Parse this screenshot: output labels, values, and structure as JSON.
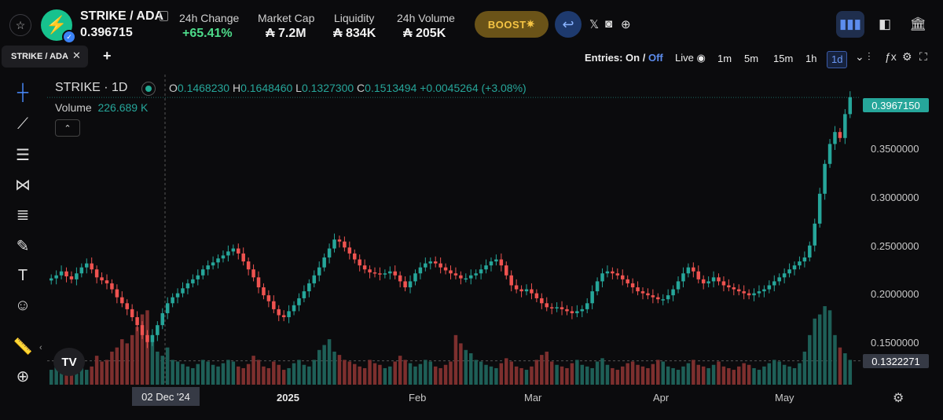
{
  "header": {
    "pair": "STRIKE / ADA",
    "price": "0.396715",
    "stats": [
      {
        "label": "24h Change",
        "value": "+65.41%"
      },
      {
        "label": "Market Cap",
        "value": "₳ 7.2M"
      },
      {
        "label": "Liquidity",
        "value": "₳ 834K"
      },
      {
        "label": "24h Volume",
        "value": "₳ 205K"
      }
    ],
    "boost_label": "BOOST",
    "colors": {
      "up": "#4ddb8a",
      "boost_bg": "#6a5318",
      "accent": "#5d8dee"
    }
  },
  "tabs": {
    "active": "STRIKE / ADA"
  },
  "toolbar": {
    "entries_label": "Entries:",
    "entries_on": "On",
    "entries_sep": "/",
    "entries_off": "Off",
    "live_label": "Live",
    "timeframes": [
      "1m",
      "5m",
      "15m",
      "1h",
      "1d"
    ],
    "active_timeframe": "1d"
  },
  "chart": {
    "title": "STRIKE · 1D",
    "ohlc": {
      "o": "0.1468230",
      "h": "0.1648460",
      "l": "0.1327300",
      "c": "0.1513494",
      "chg": "+0.0045264 (+3.08%)"
    },
    "volume_label": "Volume",
    "volume_value": "226.689 K",
    "current_price_tag": "0.3967150",
    "crosshair_price_tag": "0.1322271",
    "crosshair_date": "02 Dec '24",
    "y_ticks": [
      "0.3500000",
      "0.3000000",
      "0.2500000",
      "0.2000000",
      "0.1500000"
    ],
    "x_ticks": [
      "2025",
      "Feb",
      "Mar",
      "Apr",
      "May"
    ]
  },
  "chart_data": {
    "type": "candlestick",
    "title": "STRIKE · 1D",
    "ylim": [
      0.13,
      0.4
    ],
    "y_ticks": [
      0.15,
      0.2,
      0.25,
      0.3,
      0.35
    ],
    "x_ticks": [
      "2025",
      "Feb",
      "Mar",
      "Apr",
      "May"
    ],
    "close_series": [
      0.215,
      0.218,
      0.222,
      0.217,
      0.214,
      0.22,
      0.226,
      0.23,
      0.224,
      0.216,
      0.213,
      0.21,
      0.204,
      0.196,
      0.19,
      0.184,
      0.176,
      0.168,
      0.158,
      0.151,
      0.158,
      0.168,
      0.18,
      0.19,
      0.196,
      0.2,
      0.205,
      0.21,
      0.214,
      0.218,
      0.224,
      0.228,
      0.231,
      0.235,
      0.238,
      0.242,
      0.245,
      0.24,
      0.232,
      0.224,
      0.216,
      0.206,
      0.198,
      0.192,
      0.184,
      0.178,
      0.176,
      0.182,
      0.188,
      0.195,
      0.202,
      0.21,
      0.218,
      0.226,
      0.236,
      0.245,
      0.254,
      0.252,
      0.246,
      0.24,
      0.234,
      0.228,
      0.224,
      0.221,
      0.22,
      0.219,
      0.22,
      0.222,
      0.218,
      0.212,
      0.206,
      0.212,
      0.22,
      0.226,
      0.23,
      0.232,
      0.23,
      0.226,
      0.223,
      0.22,
      0.218,
      0.215,
      0.215,
      0.218,
      0.22,
      0.224,
      0.228,
      0.232,
      0.234,
      0.228,
      0.218,
      0.208,
      0.204,
      0.202,
      0.204,
      0.2,
      0.195,
      0.19,
      0.186,
      0.185,
      0.186,
      0.184,
      0.182,
      0.18,
      0.182,
      0.184,
      0.19,
      0.202,
      0.212,
      0.22,
      0.222,
      0.22,
      0.218,
      0.214,
      0.21,
      0.206,
      0.202,
      0.2,
      0.198,
      0.196,
      0.194,
      0.194,
      0.198,
      0.204,
      0.212,
      0.22,
      0.226,
      0.222,
      0.214,
      0.21,
      0.212,
      0.216,
      0.212,
      0.208,
      0.206,
      0.204,
      0.202,
      0.2,
      0.198,
      0.2,
      0.202,
      0.204,
      0.208,
      0.212,
      0.216,
      0.22,
      0.224,
      0.228,
      0.232,
      0.236,
      0.248,
      0.27,
      0.3,
      0.33,
      0.35,
      0.362,
      0.356,
      0.38,
      0.397
    ],
    "volume_series": [
      18,
      22,
      15,
      20,
      25,
      30,
      26,
      18,
      22,
      35,
      28,
      30,
      40,
      45,
      55,
      50,
      60,
      70,
      85,
      90,
      60,
      40,
      35,
      45,
      30,
      28,
      25,
      22,
      20,
      25,
      30,
      28,
      24,
      22,
      26,
      30,
      28,
      22,
      20,
      25,
      35,
      30,
      22,
      20,
      28,
      24,
      18,
      20,
      26,
      30,
      24,
      22,
      30,
      42,
      48,
      55,
      40,
      36,
      30,
      28,
      25,
      22,
      20,
      30,
      26,
      24,
      20,
      22,
      28,
      35,
      30,
      26,
      22,
      25,
      30,
      28,
      22,
      20,
      24,
      28,
      60,
      50,
      42,
      38,
      30,
      28,
      24,
      22,
      20,
      26,
      32,
      28,
      22,
      20,
      18,
      22,
      30,
      36,
      40,
      28,
      24,
      22,
      20,
      26,
      30,
      24,
      22,
      20,
      28,
      32,
      24,
      20,
      18,
      22,
      26,
      28,
      24,
      22,
      20,
      25,
      30,
      28,
      22,
      20,
      18,
      22,
      26,
      30,
      24,
      22,
      20,
      24,
      28,
      22,
      20,
      18,
      22,
      26,
      24,
      20,
      18,
      22,
      26,
      30,
      28,
      24,
      22,
      20,
      26,
      40,
      60,
      80,
      85,
      95,
      90,
      60,
      45,
      38,
      30
    ]
  }
}
